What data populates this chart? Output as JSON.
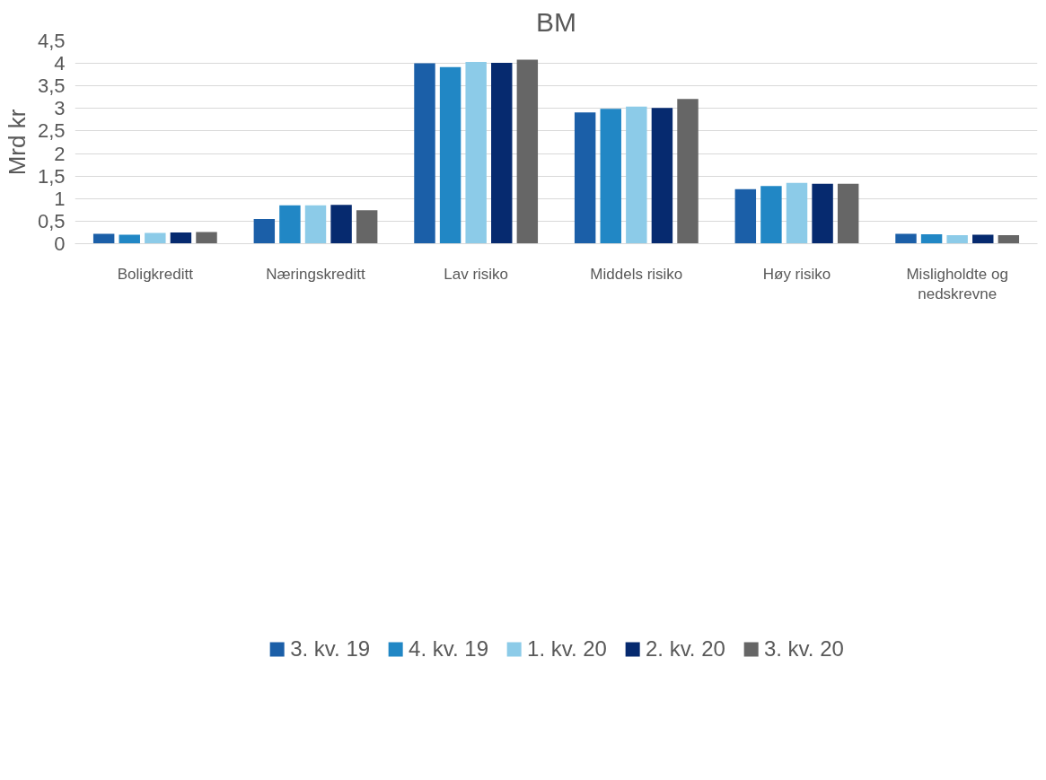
{
  "chart_data": {
    "type": "bar",
    "title": "BM",
    "ylabel": "Mrd kr",
    "categories": [
      "Boligkreditt",
      "Næringskreditt",
      "Lav risiko",
      "Middels risiko",
      "Høy risiko",
      "Misligholdte og nedskrevne"
    ],
    "series": [
      {
        "name": "3. kv. 19",
        "color": "#1b5fa8",
        "values": [
          0.22,
          0.55,
          4.0,
          2.91,
          1.21,
          0.22
        ]
      },
      {
        "name": "4. kv. 19",
        "color": "#2187c5",
        "values": [
          0.2,
          0.85,
          3.92,
          2.99,
          1.28,
          0.21
        ]
      },
      {
        "name": "1. kv. 20",
        "color": "#8ccbe8",
        "values": [
          0.24,
          0.85,
          4.03,
          3.04,
          1.35,
          0.19
        ]
      },
      {
        "name": "2. kv. 20",
        "color": "#062a6f",
        "values": [
          0.25,
          0.86,
          4.01,
          3.01,
          1.33,
          0.2
        ]
      },
      {
        "name": "3. kv. 20",
        "color": "#666666",
        "values": [
          0.26,
          0.74,
          4.08,
          3.21,
          1.33,
          0.19
        ]
      }
    ],
    "ylim": [
      0,
      4.5
    ],
    "yticks": [
      0,
      {
        "value": 0.5,
        "label": "0,5"
      },
      1,
      {
        "value": 1.5,
        "label": "1,5"
      },
      2,
      {
        "value": 2.5,
        "label": "2,5"
      },
      3,
      {
        "value": 3.5,
        "label": "3,5"
      },
      4,
      {
        "value": 4.5,
        "label": "4,5"
      }
    ],
    "grid": "y",
    "legend": "bottom"
  }
}
